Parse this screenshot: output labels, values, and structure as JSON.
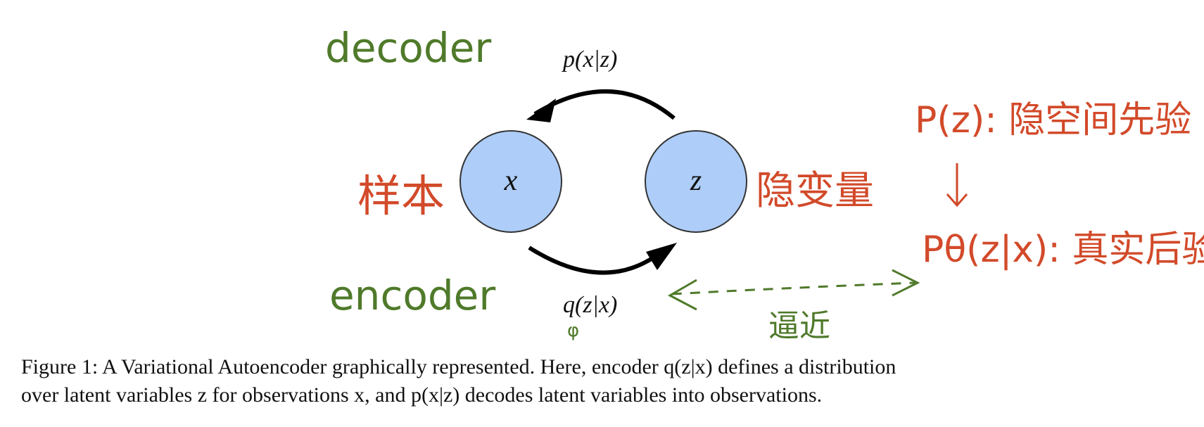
{
  "nodes": {
    "x": "x",
    "z": "z"
  },
  "edges": {
    "decoder": "p(x|z)",
    "encoder": "q(z|x)",
    "encoder_subscript": "φ"
  },
  "annotations": {
    "decoder": "decoder",
    "encoder": "encoder",
    "sample": "样本",
    "latent": "隐变量",
    "approx": "逼近",
    "prior": "P(z): 隐空间先验",
    "posterior": "Pθ(z|x): 真实后验",
    "posterior_theta": "θ"
  },
  "colors": {
    "node_fill": "#aecdf8",
    "node_stroke": "#333333",
    "green_ink": "#4f7a2a",
    "red_ink": "#d24a2a"
  },
  "caption": {
    "line1": "Figure 1: A Variational Autoencoder graphically represented. Here, encoder q(z|x) defines a distribution",
    "line2": "over latent variables z for observations x, and p(x|z) decodes latent variables into observations."
  }
}
